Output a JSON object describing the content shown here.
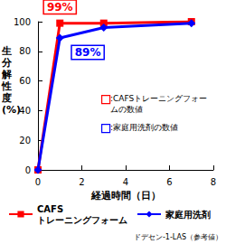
{
  "chart_data": {
    "type": "line",
    "x_label": "経過時間（日）",
    "y_label": "生分解性度(%)",
    "xlim": [
      0,
      8
    ],
    "xticks": [
      0,
      2,
      4,
      6,
      8
    ],
    "ylim": [
      0,
      100
    ],
    "yticks": [
      0,
      20,
      40,
      60,
      80,
      100
    ],
    "grid": false,
    "legend": "bottom",
    "series": [
      {
        "name": "CAFS\nトレーニングフォーム",
        "color": "#ff0000",
        "marker": "square",
        "x": [
          0,
          1,
          3,
          7
        ],
        "values": [
          0,
          99,
          99,
          100
        ]
      },
      {
        "name": "家庭用洗剤",
        "color": "#0000ff",
        "marker": "diamond",
        "x": [
          0,
          1,
          3,
          7
        ],
        "values": [
          0,
          89,
          96,
          99
        ]
      }
    ],
    "annotations": [
      {
        "text": "99%",
        "series": 0,
        "x": 1
      },
      {
        "text": "89%",
        "series": 1,
        "x": 1
      }
    ],
    "key_notes": [
      {
        "text": ":CAFSトレーニングフォームの数値",
        "series": 0
      },
      {
        "text": ":家庭用洗剤の数値",
        "series": 1
      }
    ],
    "legend_note": "ドデセン-1-LAS（参考値）"
  }
}
